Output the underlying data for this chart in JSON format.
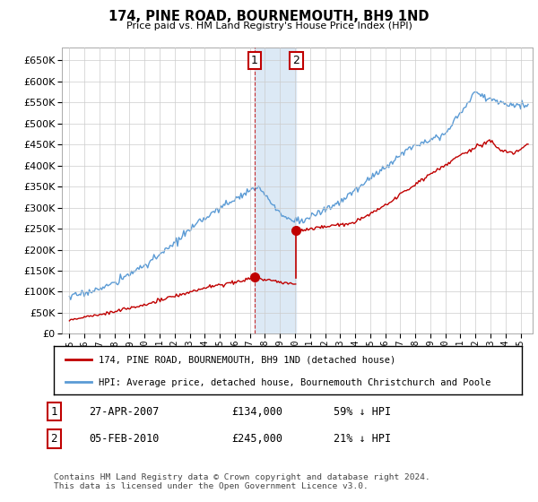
{
  "title": "174, PINE ROAD, BOURNEMOUTH, BH9 1ND",
  "subtitle": "Price paid vs. HM Land Registry's House Price Index (HPI)",
  "legend_line1": "174, PINE ROAD, BOURNEMOUTH, BH9 1ND (detached house)",
  "legend_line2": "HPI: Average price, detached house, Bournemouth Christchurch and Poole",
  "transaction1_date": "27-APR-2007",
  "transaction1_price": "£134,000",
  "transaction1_hpi": "59% ↓ HPI",
  "transaction2_date": "05-FEB-2010",
  "transaction2_price": "£245,000",
  "transaction2_hpi": "21% ↓ HPI",
  "footnote": "Contains HM Land Registry data © Crown copyright and database right 2024.\nThis data is licensed under the Open Government Licence v3.0.",
  "hpi_color": "#5b9bd5",
  "price_color": "#c00000",
  "highlight_color": "#dce9f5",
  "transaction_box_color": "#c00000",
  "t1_year": 2007.32,
  "t2_year": 2010.09,
  "price_t1": 134000,
  "price_t2": 245000,
  "ylim": [
    0,
    680000
  ],
  "yticks": [
    0,
    50000,
    100000,
    150000,
    200000,
    250000,
    300000,
    350000,
    400000,
    450000,
    500000,
    550000,
    600000,
    650000
  ],
  "xlim_left": 1994.5,
  "xlim_right": 2025.8,
  "background_color": "#ffffff",
  "grid_color": "#cccccc",
  "noise_hpi": 4000,
  "noise_price": 2000
}
